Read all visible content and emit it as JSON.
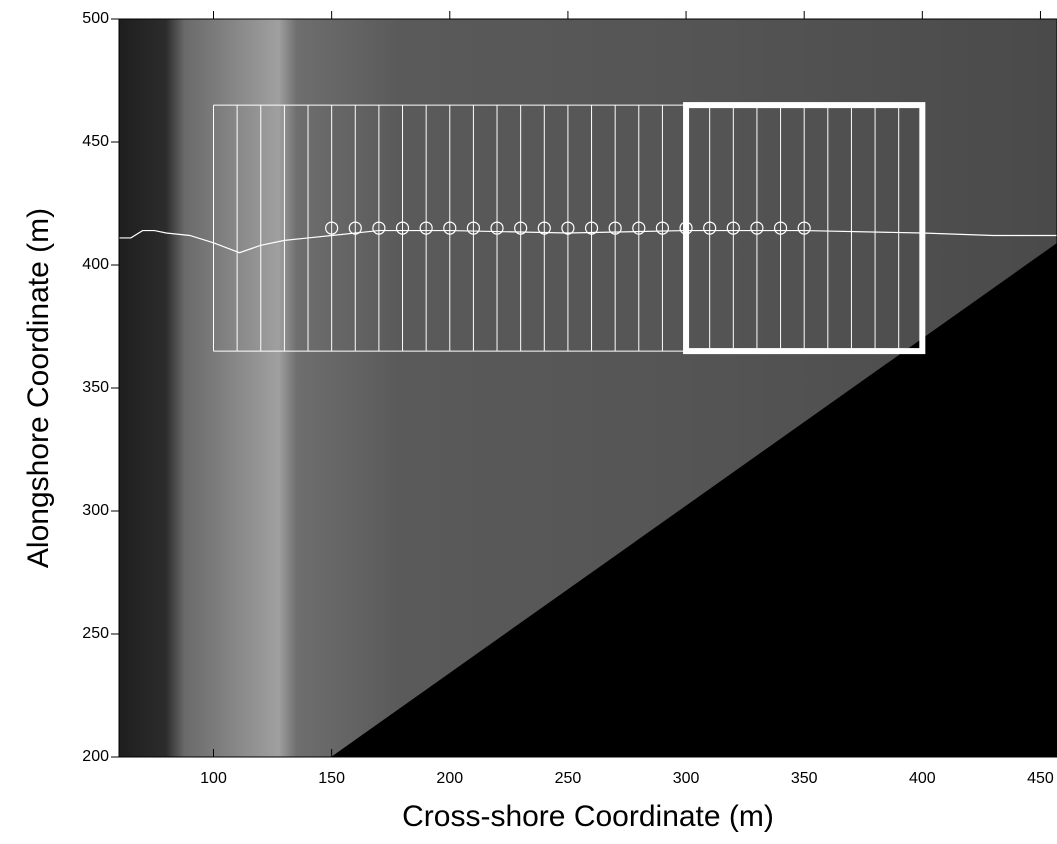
{
  "chart_data": {
    "type": "image",
    "xlabel": "Cross-shore Coordinate (m)",
    "ylabel": "Alongshore Coordinate (m)",
    "xlim": [
      60,
      457
    ],
    "ylim": [
      200,
      500
    ],
    "xticks": [
      100,
      150,
      200,
      250,
      300,
      350,
      400,
      450
    ],
    "yticks": [
      200,
      250,
      300,
      350,
      400,
      450,
      500
    ],
    "color": "#ffffff",
    "transects": {
      "x": [
        100,
        110,
        120,
        130,
        140,
        150,
        160,
        170,
        180,
        190,
        200,
        210,
        220,
        230,
        240,
        250,
        260,
        270,
        280,
        290,
        300,
        310,
        320,
        330,
        340,
        350,
        360,
        370,
        380,
        390,
        400
      ],
      "ylim": [
        365,
        465
      ]
    },
    "highlight_box": {
      "xlim": [
        300,
        400
      ],
      "ylim": [
        365,
        465
      ]
    },
    "points": {
      "x": [
        150,
        160,
        170,
        180,
        190,
        200,
        210,
        220,
        230,
        240,
        250,
        260,
        270,
        280,
        290,
        300,
        310,
        320,
        330,
        340,
        350
      ],
      "y": [
        415,
        415,
        415,
        415,
        415,
        415,
        415,
        415,
        415,
        415,
        415,
        415,
        415,
        415,
        415,
        415,
        415,
        415,
        415,
        415,
        415
      ]
    },
    "line": {
      "x": [
        60,
        65,
        70,
        75,
        80,
        90,
        100,
        111,
        120,
        130,
        140,
        150,
        170,
        200,
        250,
        300,
        350,
        400,
        430,
        457
      ],
      "y": [
        411,
        411,
        414,
        414,
        413,
        412,
        409,
        405,
        408,
        410,
        411,
        412,
        414,
        414,
        413,
        414,
        414,
        413,
        412,
        412
      ]
    }
  }
}
